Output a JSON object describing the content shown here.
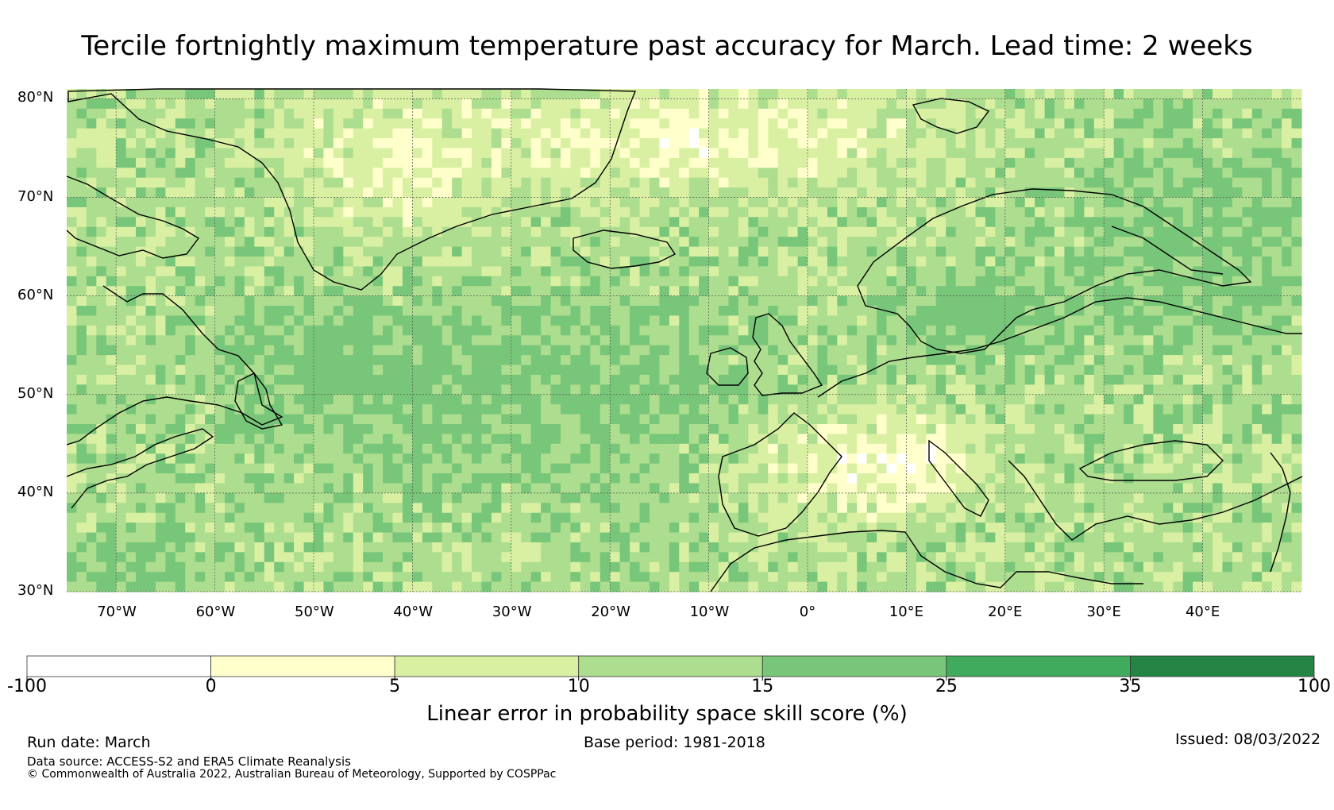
{
  "title": "Tercile fortnightly maximum temperature past accuracy for March. Lead time: 2 weeks",
  "map": {
    "lat_labels": [
      "80°N",
      "70°N",
      "60°N",
      "50°N",
      "40°N",
      "30°N"
    ],
    "lon_labels": [
      "70°W",
      "60°W",
      "50°W",
      "40°W",
      "30°W",
      "20°W",
      "10°W",
      "0°",
      "10°E",
      "20°E",
      "30°E",
      "40°E"
    ],
    "extent": {
      "lon_min": -75,
      "lon_max": 50,
      "lat_min": 30,
      "lat_max": 81
    }
  },
  "colorbar": {
    "ticks": [
      "-100",
      "0",
      "5",
      "10",
      "15",
      "25",
      "35",
      "100"
    ],
    "colors": [
      "#ffffff",
      "#ffffcc",
      "#d9f0a3",
      "#addd8e",
      "#78c679",
      "#41ab5d",
      "#238443"
    ],
    "label": "Linear error in probability space skill score (%)"
  },
  "footer": {
    "run_date": "Run date: March",
    "base_period": "Base period: 1981-2018",
    "issued": "Issued: 08/03/2022",
    "data_source": "Data source: ACCESS-S2 and ERA5 Climate Reanalysis",
    "copyright": "© Commonwealth of Australia 2022, Australian Bureau of Meteorology, Supported by COSPPac"
  }
}
